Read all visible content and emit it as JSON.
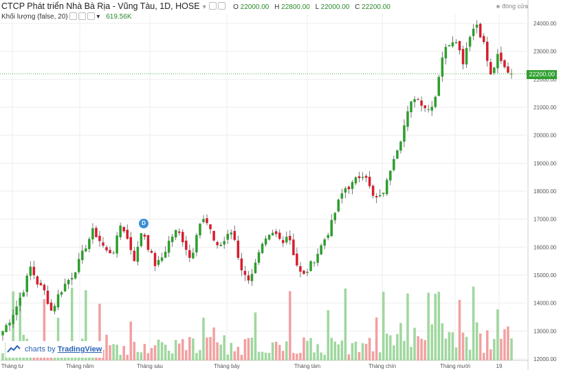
{
  "header": {
    "title": "CTCP Phát triển Nhà Bà Rịa - Vũng Tàu, 1D, HOSE",
    "ohlc": {
      "o_label": "O",
      "o": "22000.00",
      "h_label": "H",
      "h": "22800.00",
      "l_label": "L",
      "l": "22000.00",
      "c_label": "C",
      "c": "22200.00"
    },
    "market_status": "đóng cửa",
    "volume_label": "Khối lượng (false, 20)",
    "volume_value": "619.56K"
  },
  "brand": {
    "prefix": "charts by",
    "name": "TradingView"
  },
  "last_price_label": "22200.00",
  "dividend_marker": "D",
  "colors": {
    "up": "#2e9e2e",
    "down": "#d61e2e",
    "vol_up": "#9fd79f",
    "vol_down": "#f2a0a0",
    "grid": "#eeeeee",
    "last_price_line": "#3cb43c"
  },
  "chart_data": {
    "type": "candlestick",
    "y_axis": {
      "ticks": [
        12000,
        13000,
        14000,
        15000,
        16000,
        17000,
        18000,
        19000,
        20000,
        21000,
        22000,
        23000,
        24000
      ],
      "tick_labels": [
        "12000.00",
        "13000.00",
        "14000.00",
        "15000.00",
        "16000.00",
        "17000.00",
        "18000.00",
        "19000.00",
        "20000.00",
        "21000.00",
        "22000.00",
        "23000.00",
        "24000.00"
      ],
      "range": [
        11900,
        24400
      ]
    },
    "x_axis": {
      "labels": [
        "Tháng tư",
        "Tháng năm",
        "Tháng sáu",
        "Tháng bảy",
        "Tháng tám",
        "Tháng chín",
        "Tháng mười",
        "19"
      ]
    },
    "price_key_points": [
      13000,
      13400,
      13900,
      14500,
      15300,
      14700,
      14400,
      13700,
      14300,
      14700,
      15000,
      15500,
      16100,
      16600,
      16200,
      15800,
      15900,
      16900,
      16200,
      15500,
      16700,
      15900,
      15300,
      15700,
      16300,
      16600,
      16200,
      15500,
      16800,
      17000,
      16400,
      16000,
      16300,
      16600,
      15400,
      14800,
      15200,
      15900,
      16300,
      16500,
      16200,
      16500,
      15500,
      14900,
      15300,
      15700,
      16200,
      16700,
      17500,
      18100,
      18200,
      18500,
      18700,
      17800,
      17700,
      18200,
      19200,
      19800,
      20700,
      21400,
      21200,
      20900,
      21300,
      22800,
      23300,
      23500,
      22600,
      23600,
      24000,
      23300,
      22100,
      22800,
      22400,
      22200
    ],
    "last_close": 22200
  }
}
